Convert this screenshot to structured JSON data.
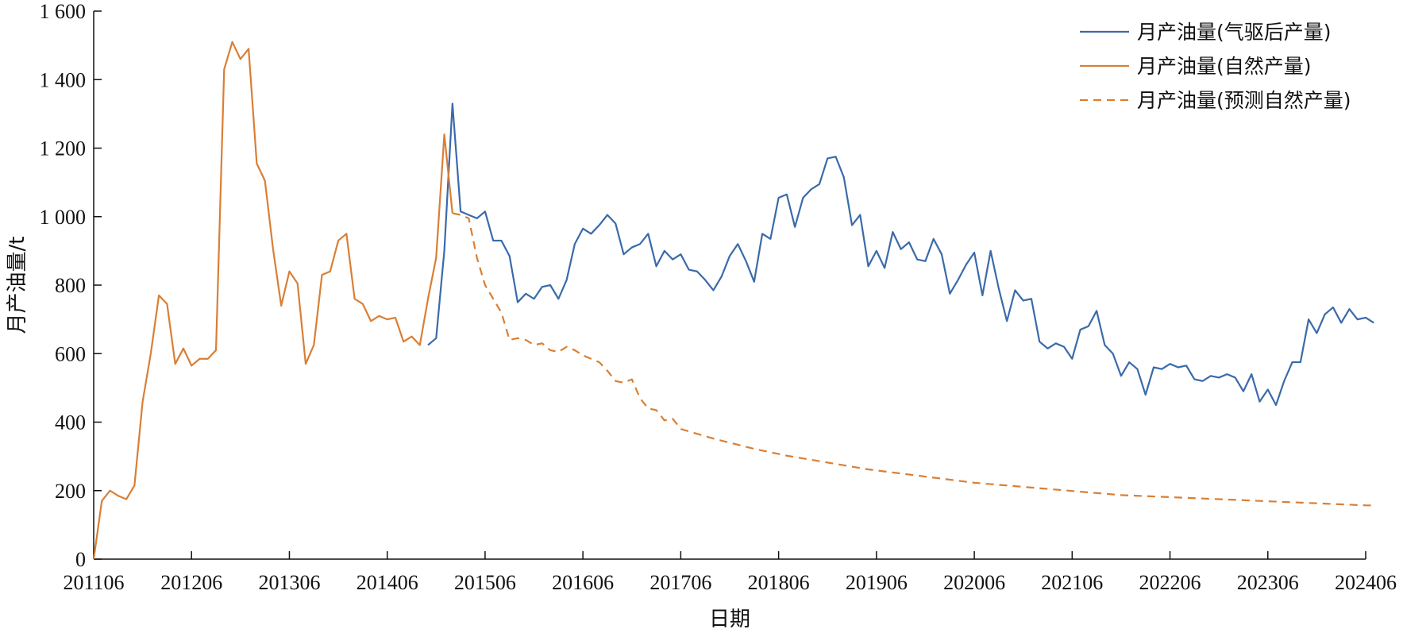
{
  "chart_data": {
    "type": "line",
    "xlabel": "日期",
    "ylabel": "月产油量/t",
    "ylim": [
      0,
      1600
    ],
    "yticks": [
      0,
      200,
      400,
      600,
      800,
      1000,
      1200,
      1400,
      1600
    ],
    "ytick_labels": [
      "0",
      "200",
      "400",
      "600",
      "800",
      "1 000",
      "1 200",
      "1 400",
      "1 600"
    ],
    "x_ticks": [
      "201106",
      "201206",
      "201306",
      "201406",
      "201506",
      "201606",
      "201706",
      "201806",
      "201906",
      "202006",
      "202106",
      "202206",
      "202306",
      "202406"
    ],
    "x_tick_positions": [
      0,
      12,
      24,
      36,
      48,
      60,
      72,
      84,
      96,
      108,
      120,
      132,
      144,
      156
    ],
    "xlim": [
      0,
      156
    ],
    "legend_position": "top-right",
    "colors": {
      "blue": "#3a6aaa",
      "orange": "#d97f35"
    },
    "series": [
      {
        "name": "月产油量(气驱后产量)",
        "style": "solid",
        "color": "#3a6aaa",
        "start": 41,
        "values": [
          625,
          645,
          900,
          1330,
          1015,
          1005,
          995,
          1015,
          930,
          930,
          885,
          750,
          775,
          760,
          795,
          800,
          760,
          815,
          920,
          965,
          950,
          975,
          1005,
          980,
          890,
          910,
          920,
          950,
          855,
          900,
          875,
          890,
          845,
          840,
          815,
          785,
          825,
          885,
          920,
          870,
          810,
          950,
          935,
          1055,
          1065,
          970,
          1055,
          1080,
          1095,
          1170,
          1175,
          1115,
          975,
          1005,
          855,
          900,
          850,
          955,
          905,
          925,
          875,
          870,
          935,
          890,
          775,
          815,
          860,
          895,
          770,
          900,
          790,
          695,
          785,
          755,
          760,
          635,
          615,
          630,
          620,
          585,
          670,
          680,
          725,
          625,
          600,
          535,
          575,
          555,
          480,
          560,
          555,
          570,
          560,
          565,
          525,
          520,
          535,
          530,
          540,
          530,
          490,
          540,
          460,
          495,
          450,
          520,
          575,
          575,
          700,
          660,
          715,
          735,
          690,
          730,
          700,
          705,
          690
        ]
      },
      {
        "name": "月产油量(自然产量)",
        "style": "solid",
        "color": "#d97f35",
        "start": 0,
        "values": [
          0,
          170,
          200,
          185,
          175,
          215,
          460,
          600,
          770,
          745,
          570,
          615,
          565,
          585,
          585,
          610,
          1430,
          1510,
          1460,
          1490,
          1155,
          1105,
          905,
          740,
          840,
          805,
          570,
          625,
          830,
          840,
          930,
          950,
          760,
          745,
          695,
          710,
          700,
          705,
          635,
          650,
          625,
          760,
          880,
          1240,
          1010
        ]
      },
      {
        "name": "月产油量(预测自然产量)",
        "style": "dashed",
        "color": "#d97f35",
        "start": 44,
        "values": [
          1010,
          1005,
          995,
          880,
          800,
          760,
          720,
          640,
          645,
          640,
          625,
          630,
          610,
          605,
          620,
          610,
          595,
          585,
          575,
          550,
          520,
          515,
          525,
          470,
          440,
          435,
          405,
          410,
          380,
          373,
          366,
          359,
          352,
          346,
          340,
          334,
          328,
          322,
          317,
          312,
          307,
          302,
          298,
          294,
          290,
          286,
          282,
          278,
          274,
          270,
          266,
          262,
          259,
          256,
          253,
          250,
          247,
          244,
          241,
          238,
          235,
          232,
          229,
          226,
          223,
          221,
          219,
          217,
          215,
          213,
          211,
          209,
          207,
          205,
          203,
          201,
          199,
          197,
          195,
          193,
          191,
          189,
          187,
          186,
          185,
          184,
          183,
          182,
          181,
          180,
          179,
          178,
          177,
          176,
          175,
          174,
          173,
          172,
          171,
          170,
          169,
          168,
          167,
          166,
          165,
          164,
          163,
          162,
          161,
          160,
          159,
          158,
          157,
          157
        ]
      }
    ]
  }
}
